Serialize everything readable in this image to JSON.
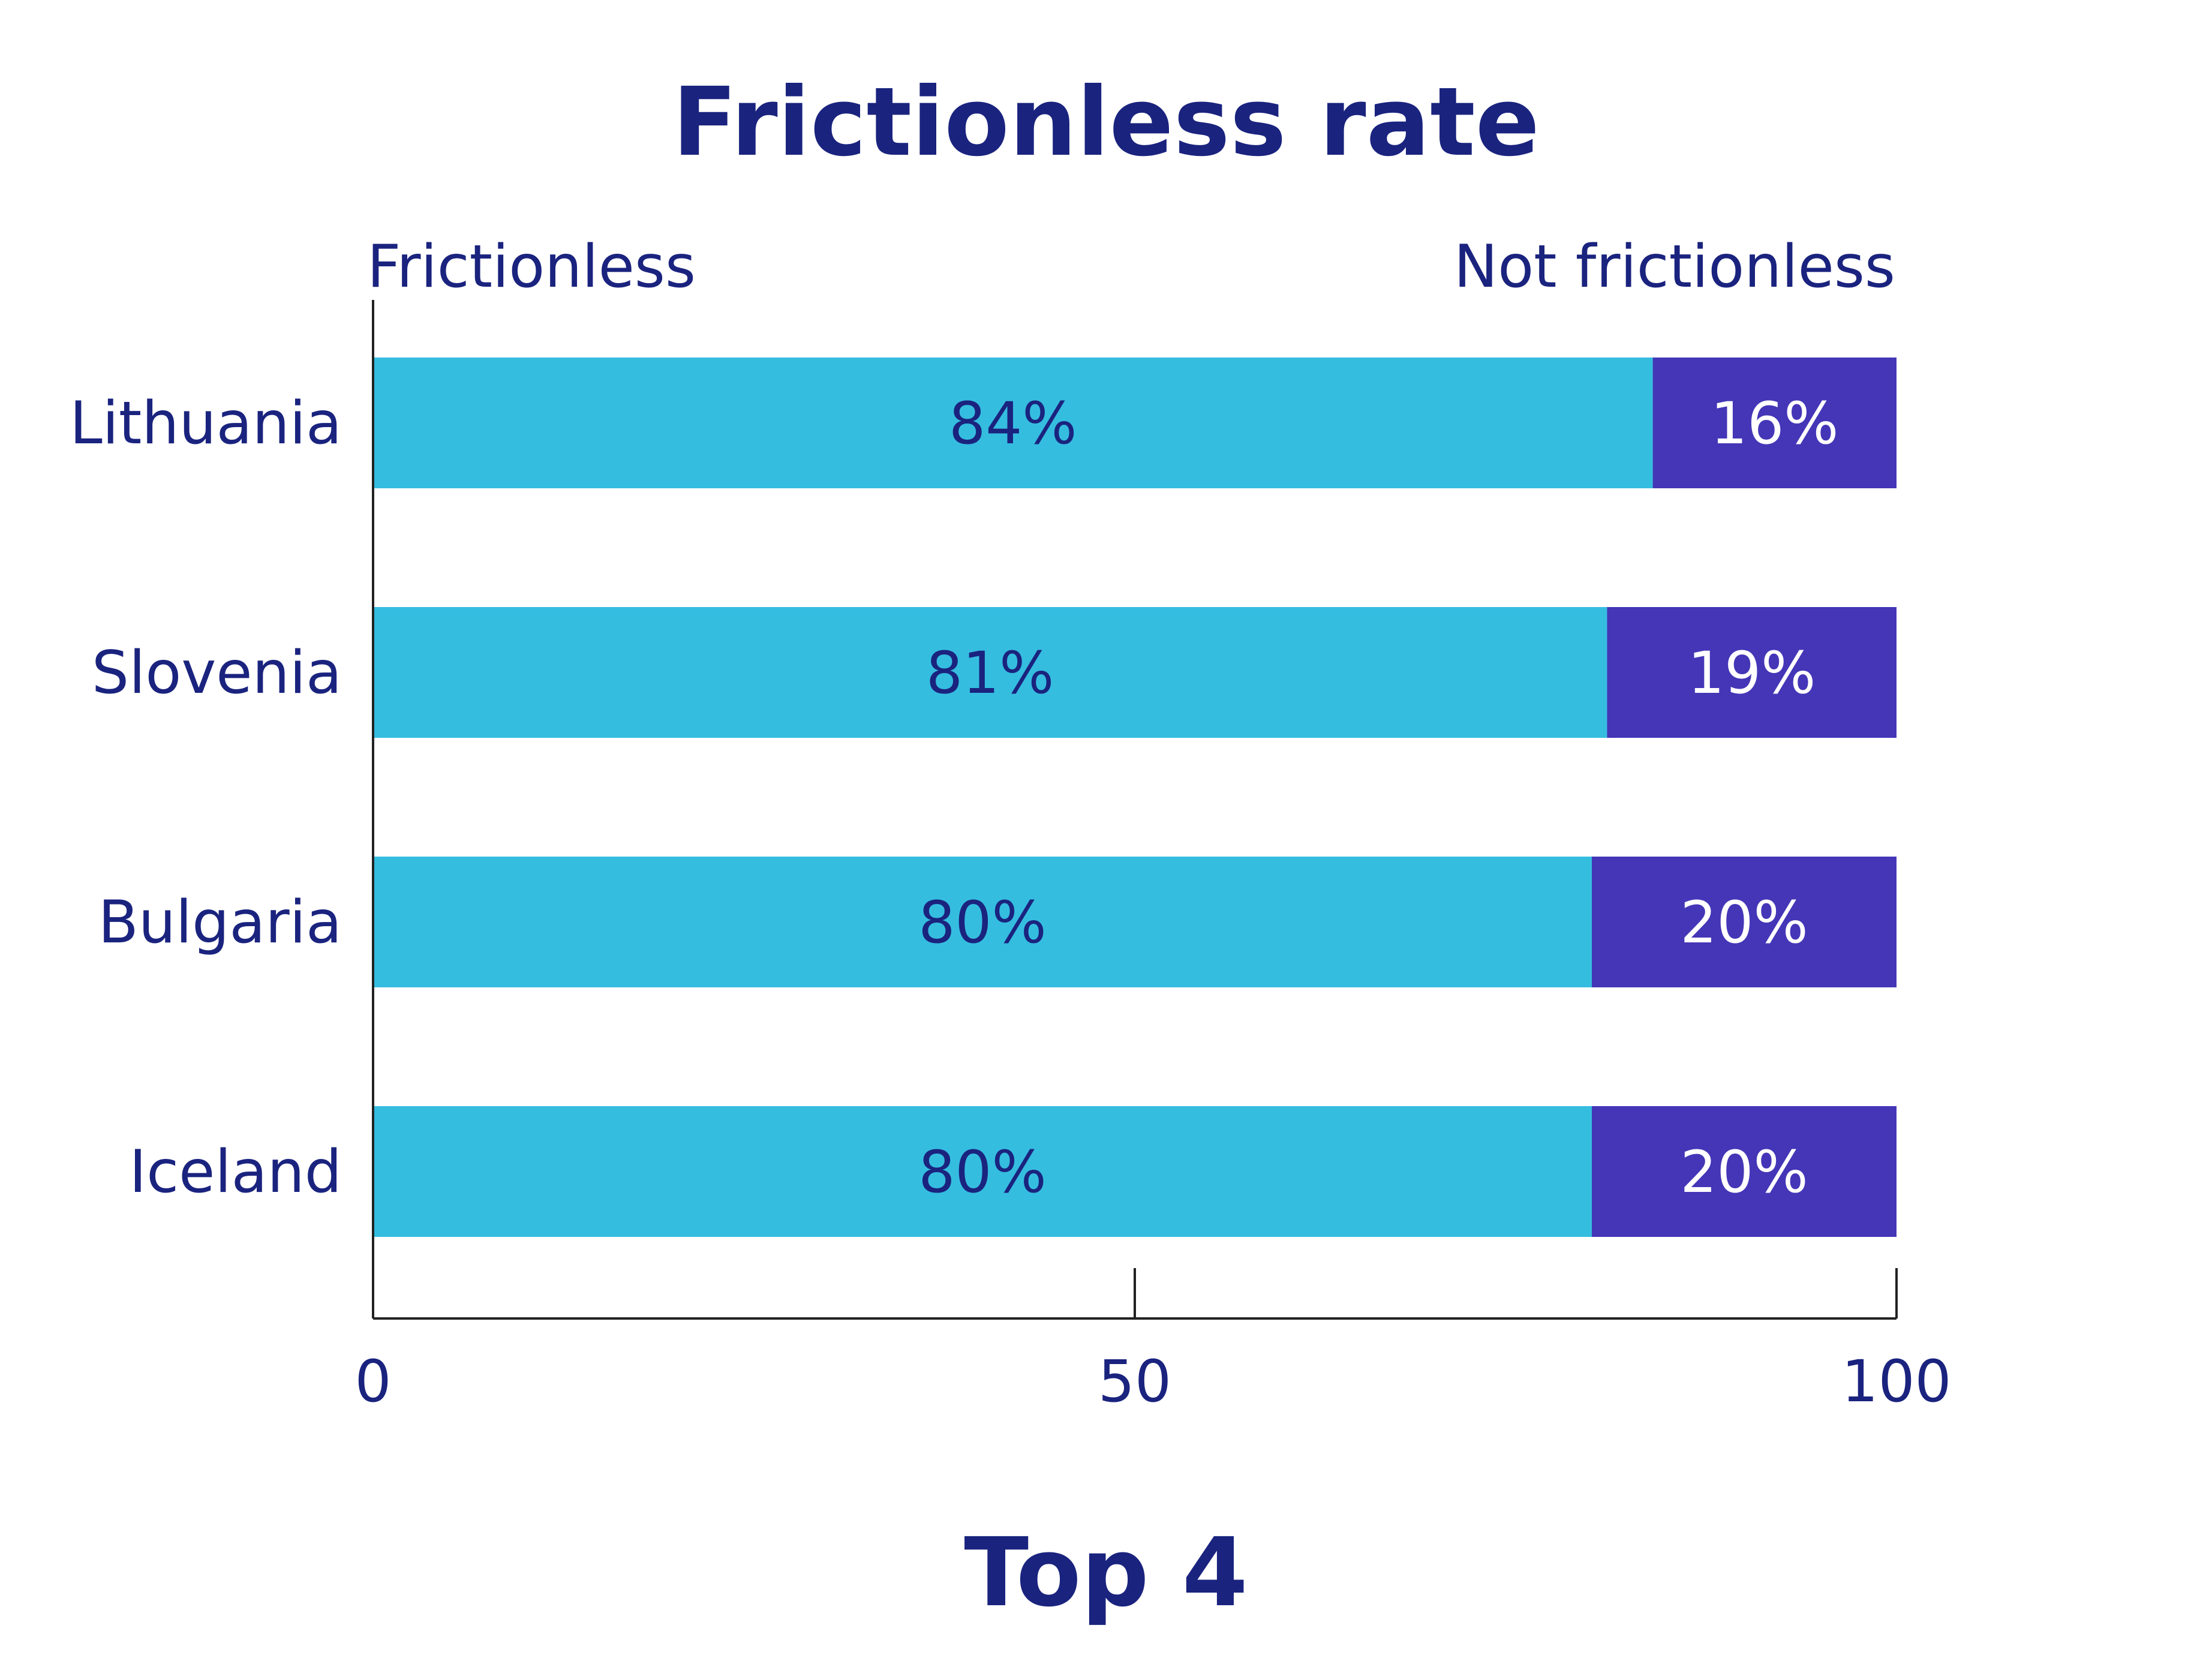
{
  "chart_data": {
    "type": "bar",
    "orientation": "horizontal",
    "stacked": true,
    "title": "Frictionless rate",
    "subtitle": "Top 4",
    "categories": [
      "Lithuania",
      "Slovenia",
      "Bulgaria",
      "Iceland"
    ],
    "series": [
      {
        "name": "Frictionless",
        "values": [
          84,
          81,
          80,
          80
        ],
        "labels": [
          "84%",
          "81%",
          "80%",
          "80%"
        ],
        "color": "#35bde0"
      },
      {
        "name": "Not frictionless",
        "values": [
          16,
          19,
          20,
          20
        ],
        "labels": [
          "16%",
          "19%",
          "20%",
          "20%"
        ],
        "color": "#4436b7"
      }
    ],
    "xlim": [
      0,
      100
    ],
    "xticks": [
      0,
      50,
      100
    ],
    "xtick_labels": [
      "0",
      "50",
      "100"
    ],
    "grid": false,
    "legend_placement": "top"
  },
  "colors": {
    "text": "#1a237e",
    "axis": "#222222"
  }
}
